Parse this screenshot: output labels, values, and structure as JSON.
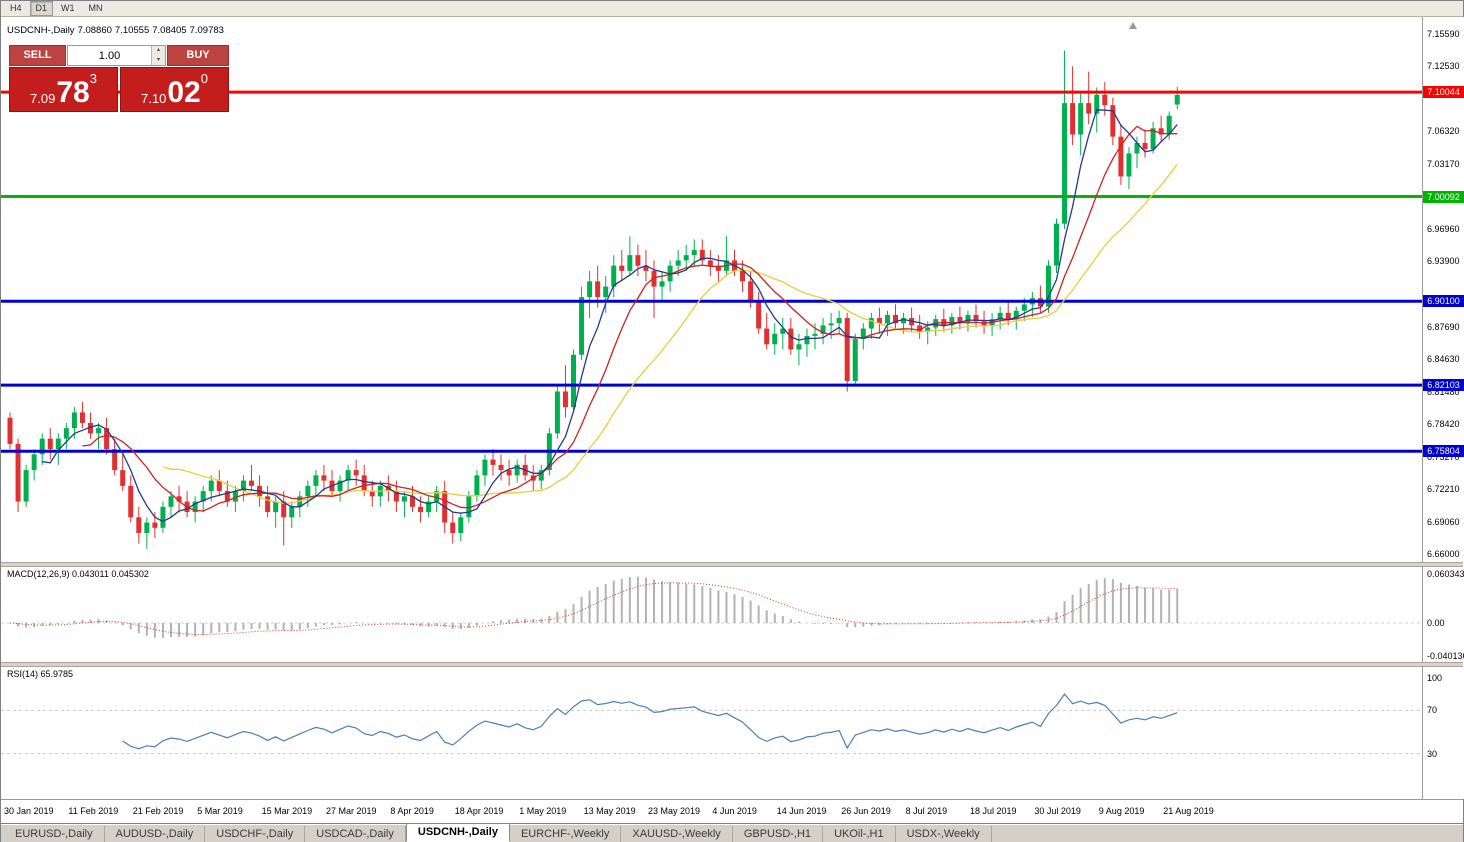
{
  "toolbar": {
    "timeframes": [
      {
        "label": "H4",
        "active": false
      },
      {
        "label": "D1",
        "active": true
      },
      {
        "label": "W1",
        "active": false
      },
      {
        "label": "MN",
        "active": false
      }
    ]
  },
  "chart_header": {
    "symbol": "USDCNH-,Daily",
    "open": "7.08860",
    "high": "7.10555",
    "low": "7.08405",
    "close": "7.09783"
  },
  "trade_panel": {
    "sell_label": "SELL",
    "buy_label": "BUY",
    "volume": "1.00",
    "bid": {
      "small": "7.09",
      "big": "78",
      "sup": "3"
    },
    "ask": {
      "small": "7.10",
      "big": "02",
      "sup": "0"
    }
  },
  "chart_data": {
    "type": "candlestick",
    "symbol": "USDCNH",
    "timeframe": "Daily",
    "colors": {
      "bull": "#00b050",
      "bear": "#e03030"
    },
    "y_axis": {
      "ticks": [
        "7.15590",
        "7.12530",
        "7.06320",
        "7.03170",
        "6.96960",
        "6.93900",
        "6.87690",
        "6.84630",
        "6.81480",
        "6.78420",
        "6.75270",
        "6.72210",
        "6.69060",
        "6.66000"
      ]
    },
    "hlines": [
      {
        "value": 7.10044,
        "label": "7.10044",
        "color": "#ff0000"
      },
      {
        "value": 7.00092,
        "label": "7.00092",
        "color": "#00b400"
      },
      {
        "value": 6.901,
        "label": "6.90100",
        "color": "#0000d0"
      },
      {
        "value": 6.82103,
        "label": "6.82103",
        "color": "#0000d0"
      },
      {
        "value": 6.75804,
        "label": "6.75804",
        "color": "#0000d0"
      }
    ],
    "moving_averages": [
      {
        "period": 20,
        "color": "#e6cf3c"
      },
      {
        "period": 10,
        "color": "#cc2222"
      },
      {
        "period": 5,
        "color": "#233a8c"
      }
    ],
    "indicators": [
      {
        "name": "MACD",
        "label": "MACD(12,26,9) 0.043011 0.045302",
        "params": [
          12,
          26,
          9
        ],
        "values_text": [
          "0.043011",
          "0.045302"
        ],
        "axis": [
          "0.060343",
          "0.00",
          "-0.040136"
        ],
        "hist_color": "#b2b2b2",
        "signal_color": "#e23232"
      },
      {
        "name": "RSI",
        "label": "RSI(14) 65.9785",
        "period": 14,
        "value_text": "65.9785",
        "axis": [
          "100",
          "70",
          "30"
        ],
        "levels": [
          70,
          30
        ],
        "line_color": "#4a7fba",
        "level_color": "#c8c8c8"
      }
    ],
    "x_label_every": 8,
    "x_labels": [
      "30 Jan 2019",
      "11 Feb 2019",
      "21 Feb 2019",
      "5 Mar 2019",
      "15 Mar 2019",
      "27 Mar 2019",
      "8 Apr 2019",
      "18 Apr 2019",
      "1 May 2019",
      "13 May 2019",
      "23 May 2019",
      "4 Jun 2019",
      "14 Jun 2019",
      "26 Jun 2019",
      "8 Jul 2019",
      "18 Jul 2019",
      "30 Jul 2019",
      "9 Aug 2019",
      "21 Aug 2019"
    ],
    "candles": [
      [
        6.79,
        6.795,
        6.76,
        6.765
      ],
      [
        6.765,
        6.77,
        6.7,
        6.71
      ],
      [
        6.71,
        6.745,
        6.705,
        6.74
      ],
      [
        6.74,
        6.76,
        6.73,
        6.755
      ],
      [
        6.755,
        6.775,
        6.745,
        6.77
      ],
      [
        6.77,
        6.78,
        6.75,
        6.76
      ],
      [
        6.76,
        6.775,
        6.745,
        6.77
      ],
      [
        6.77,
        6.785,
        6.76,
        6.78
      ],
      [
        6.78,
        6.8,
        6.77,
        6.795
      ],
      [
        6.795,
        6.805,
        6.78,
        6.785
      ],
      [
        6.785,
        6.795,
        6.77,
        6.775
      ],
      [
        6.775,
        6.785,
        6.76,
        6.78
      ],
      [
        6.78,
        6.79,
        6.755,
        6.76
      ],
      [
        6.76,
        6.77,
        6.735,
        6.74
      ],
      [
        6.74,
        6.755,
        6.72,
        6.725
      ],
      [
        6.725,
        6.735,
        6.69,
        6.695
      ],
      [
        6.695,
        6.705,
        6.67,
        6.68
      ],
      [
        6.68,
        6.695,
        6.665,
        6.69
      ],
      [
        6.69,
        6.7,
        6.675,
        6.685
      ],
      [
        6.685,
        6.71,
        6.68,
        6.705
      ],
      [
        6.705,
        6.72,
        6.695,
        6.715
      ],
      [
        6.715,
        6.725,
        6.7,
        6.71
      ],
      [
        6.71,
        6.72,
        6.695,
        6.7
      ],
      [
        6.7,
        6.715,
        6.69,
        6.71
      ],
      [
        6.71,
        6.725,
        6.7,
        6.72
      ],
      [
        6.72,
        6.735,
        6.71,
        6.73
      ],
      [
        6.73,
        6.74,
        6.715,
        6.72
      ],
      [
        6.72,
        6.73,
        6.705,
        6.71
      ],
      [
        6.71,
        6.725,
        6.7,
        6.72
      ],
      [
        6.72,
        6.735,
        6.71,
        6.73
      ],
      [
        6.73,
        6.745,
        6.72,
        6.725
      ],
      [
        6.725,
        6.735,
        6.705,
        6.715
      ],
      [
        6.715,
        6.725,
        6.695,
        6.7
      ],
      [
        6.7,
        6.715,
        6.685,
        6.71
      ],
      [
        6.71,
        6.72,
        6.668,
        6.695
      ],
      [
        6.695,
        6.71,
        6.685,
        6.705
      ],
      [
        6.705,
        6.72,
        6.695,
        6.715
      ],
      [
        6.715,
        6.73,
        6.705,
        6.725
      ],
      [
        6.725,
        6.74,
        6.715,
        6.735
      ],
      [
        6.735,
        6.745,
        6.72,
        6.73
      ],
      [
        6.73,
        6.74,
        6.715,
        6.72
      ],
      [
        6.72,
        6.735,
        6.71,
        6.73
      ],
      [
        6.73,
        6.745,
        6.72,
        6.74
      ],
      [
        6.74,
        6.75,
        6.725,
        6.735
      ],
      [
        6.735,
        6.745,
        6.715,
        6.72
      ],
      [
        6.72,
        6.73,
        6.705,
        6.715
      ],
      [
        6.715,
        6.73,
        6.705,
        6.725
      ],
      [
        6.725,
        6.735,
        6.71,
        6.72
      ],
      [
        6.72,
        6.73,
        6.7,
        6.71
      ],
      [
        6.71,
        6.72,
        6.695,
        6.715
      ],
      [
        6.715,
        6.725,
        6.7,
        6.705
      ],
      [
        6.705,
        6.715,
        6.69,
        6.7
      ],
      [
        6.7,
        6.715,
        6.695,
        6.71
      ],
      [
        6.71,
        6.725,
        6.7,
        6.72
      ],
      [
        6.72,
        6.73,
        6.68,
        6.69
      ],
      [
        6.69,
        6.7,
        6.67,
        6.68
      ],
      [
        6.68,
        6.7,
        6.672,
        6.695
      ],
      [
        6.695,
        6.72,
        6.69,
        6.715
      ],
      [
        6.715,
        6.74,
        6.71,
        6.735
      ],
      [
        6.735,
        6.755,
        6.725,
        6.75
      ],
      [
        6.75,
        6.76,
        6.735,
        6.745
      ],
      [
        6.745,
        6.755,
        6.73,
        6.74
      ],
      [
        6.74,
        6.75,
        6.725,
        6.735
      ],
      [
        6.735,
        6.75,
        6.728,
        6.745
      ],
      [
        6.745,
        6.755,
        6.73,
        6.735
      ],
      [
        6.735,
        6.745,
        6.72,
        6.73
      ],
      [
        6.73,
        6.745,
        6.722,
        6.74
      ],
      [
        6.74,
        6.78,
        6.735,
        6.775
      ],
      [
        6.775,
        6.82,
        6.77,
        6.815
      ],
      [
        6.815,
        6.84,
        6.79,
        6.8
      ],
      [
        6.8,
        6.855,
        6.795,
        6.85
      ],
      [
        6.85,
        6.915,
        6.845,
        6.905
      ],
      [
        6.905,
        6.93,
        6.885,
        6.92
      ],
      [
        6.92,
        6.935,
        6.895,
        6.905
      ],
      [
        6.905,
        6.925,
        6.89,
        6.915
      ],
      [
        6.915,
        6.945,
        6.905,
        6.935
      ],
      [
        6.935,
        6.95,
        6.92,
        6.93
      ],
      [
        6.93,
        6.963,
        6.925,
        6.945
      ],
      [
        6.945,
        6.955,
        6.925,
        6.935
      ],
      [
        6.935,
        6.95,
        6.92,
        6.93
      ],
      [
        6.93,
        6.94,
        6.885,
        6.915
      ],
      [
        6.915,
        6.93,
        6.9,
        6.92
      ],
      [
        6.92,
        6.94,
        6.91,
        6.935
      ],
      [
        6.935,
        6.95,
        6.925,
        6.94
      ],
      [
        6.94,
        6.955,
        6.93,
        6.945
      ],
      [
        6.945,
        6.96,
        6.935,
        6.95
      ],
      [
        6.95,
        6.96,
        6.935,
        6.94
      ],
      [
        6.94,
        6.95,
        6.925,
        6.935
      ],
      [
        6.935,
        6.945,
        6.92,
        6.93
      ],
      [
        6.93,
        6.963,
        6.925,
        6.94
      ],
      [
        6.94,
        6.95,
        6.925,
        6.93
      ],
      [
        6.93,
        6.94,
        6.91,
        6.92
      ],
      [
        6.92,
        6.93,
        6.895,
        6.9
      ],
      [
        6.9,
        6.91,
        6.87,
        6.875
      ],
      [
        6.875,
        6.89,
        6.855,
        6.86
      ],
      [
        6.86,
        6.88,
        6.85,
        6.87
      ],
      [
        6.87,
        6.885,
        6.855,
        6.875
      ],
      [
        6.875,
        6.885,
        6.85,
        6.855
      ],
      [
        6.855,
        6.87,
        6.84,
        6.86
      ],
      [
        6.86,
        6.875,
        6.848,
        6.868
      ],
      [
        6.868,
        6.88,
        6.855,
        6.87
      ],
      [
        6.87,
        6.885,
        6.86,
        6.878
      ],
      [
        6.878,
        6.89,
        6.865,
        6.88
      ],
      [
        6.88,
        6.892,
        6.87,
        6.885
      ],
      [
        6.885,
        6.89,
        6.815,
        6.825
      ],
      [
        6.825,
        6.87,
        6.82,
        6.865
      ],
      [
        6.865,
        6.88,
        6.855,
        6.875
      ],
      [
        6.875,
        6.89,
        6.865,
        6.885
      ],
      [
        6.885,
        6.895,
        6.87,
        6.88
      ],
      [
        6.88,
        6.892,
        6.868,
        6.888
      ],
      [
        6.888,
        6.898,
        6.875,
        6.88
      ],
      [
        6.88,
        6.89,
        6.87,
        6.885
      ],
      [
        6.885,
        6.895,
        6.872,
        6.878
      ],
      [
        6.878,
        6.888,
        6.865,
        6.872
      ],
      [
        6.872,
        6.882,
        6.86,
        6.876
      ],
      [
        6.876,
        6.888,
        6.868,
        6.884
      ],
      [
        6.884,
        6.894,
        6.872,
        6.878
      ],
      [
        6.878,
        6.89,
        6.87,
        6.886
      ],
      [
        6.886,
        6.896,
        6.874,
        6.88
      ],
      [
        6.88,
        6.892,
        6.872,
        6.888
      ],
      [
        6.888,
        6.898,
        6.876,
        6.882
      ],
      [
        6.882,
        6.892,
        6.87,
        6.878
      ],
      [
        6.878,
        6.89,
        6.868,
        6.884
      ],
      [
        6.884,
        6.896,
        6.874,
        6.89
      ],
      [
        6.89,
        6.9,
        6.878,
        6.884
      ],
      [
        6.884,
        6.896,
        6.874,
        6.892
      ],
      [
        6.892,
        6.904,
        6.882,
        6.898
      ],
      [
        6.898,
        6.91,
        6.886,
        6.904
      ],
      [
        6.904,
        6.916,
        6.89,
        6.896
      ],
      [
        6.896,
        6.94,
        6.89,
        6.935
      ],
      [
        6.935,
        6.98,
        6.928,
        6.975
      ],
      [
        6.975,
        7.14,
        6.97,
        7.09
      ],
      [
        7.09,
        7.125,
        7.05,
        7.06
      ],
      [
        7.06,
        7.1,
        7.04,
        7.09
      ],
      [
        7.09,
        7.12,
        7.07,
        7.08
      ],
      [
        7.08,
        7.105,
        7.062,
        7.098
      ],
      [
        7.098,
        7.11,
        7.078,
        7.088
      ],
      [
        7.088,
        7.095,
        7.05,
        7.058
      ],
      [
        7.058,
        7.07,
        7.012,
        7.02
      ],
      [
        7.02,
        7.048,
        7.008,
        7.042
      ],
      [
        7.042,
        7.058,
        7.028,
        7.052
      ],
      [
        7.052,
        7.065,
        7.038,
        7.046
      ],
      [
        7.046,
        7.072,
        7.042,
        7.066
      ],
      [
        7.066,
        7.078,
        7.052,
        7.06
      ],
      [
        7.06,
        7.082,
        7.055,
        7.078
      ],
      [
        7.0886,
        7.10555,
        7.08405,
        7.09783
      ]
    ]
  },
  "tabs": [
    {
      "label": "EURUSD-,Daily",
      "active": false
    },
    {
      "label": "AUDUSD-,Daily",
      "active": false
    },
    {
      "label": "USDCHF-,Daily",
      "active": false
    },
    {
      "label": "USDCAD-,Daily",
      "active": false
    },
    {
      "label": "USDCNH-,Daily",
      "active": true
    },
    {
      "label": "EURCHF-,Weekly",
      "active": false
    },
    {
      "label": "XAUUSD-,Weekly",
      "active": false
    },
    {
      "label": "GBPUSD-,H1",
      "active": false
    },
    {
      "label": "UKOil-,H1",
      "active": false
    },
    {
      "label": "USDX-,Weekly",
      "active": false
    }
  ]
}
